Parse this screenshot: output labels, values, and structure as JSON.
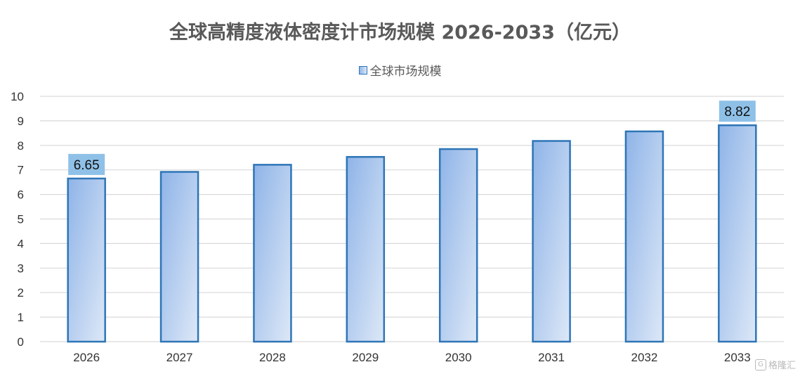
{
  "chart_data": {
    "type": "bar",
    "title": "全球高精度液体密度计市场规模 2026-2033（亿元）",
    "categories": [
      "2026",
      "2027",
      "2028",
      "2029",
      "2030",
      "2031",
      "2032",
      "2033"
    ],
    "series": [
      {
        "name": "全球市场规模",
        "values": [
          6.65,
          6.92,
          7.21,
          7.53,
          7.85,
          8.18,
          8.57,
          8.82
        ]
      }
    ],
    "data_labels": [
      {
        "category": "2026",
        "text": "6.65"
      },
      {
        "category": "2033",
        "text": "8.82"
      }
    ],
    "ylim": [
      0,
      10
    ],
    "yticks": [
      0,
      1,
      2,
      3,
      4,
      5,
      6,
      7,
      8,
      9,
      10
    ],
    "xlabel": "",
    "ylabel": "",
    "grid": true,
    "legend_position": "top",
    "colors": {
      "bar_fill_start": "#8fb4e8",
      "bar_fill_end": "#dde8f7",
      "bar_stroke": "#2e75b6",
      "label_bg": "#8fc1e8",
      "grid": "#d9d9d9"
    }
  },
  "watermark": {
    "text": "格隆汇",
    "icon": "g-logo-icon"
  }
}
